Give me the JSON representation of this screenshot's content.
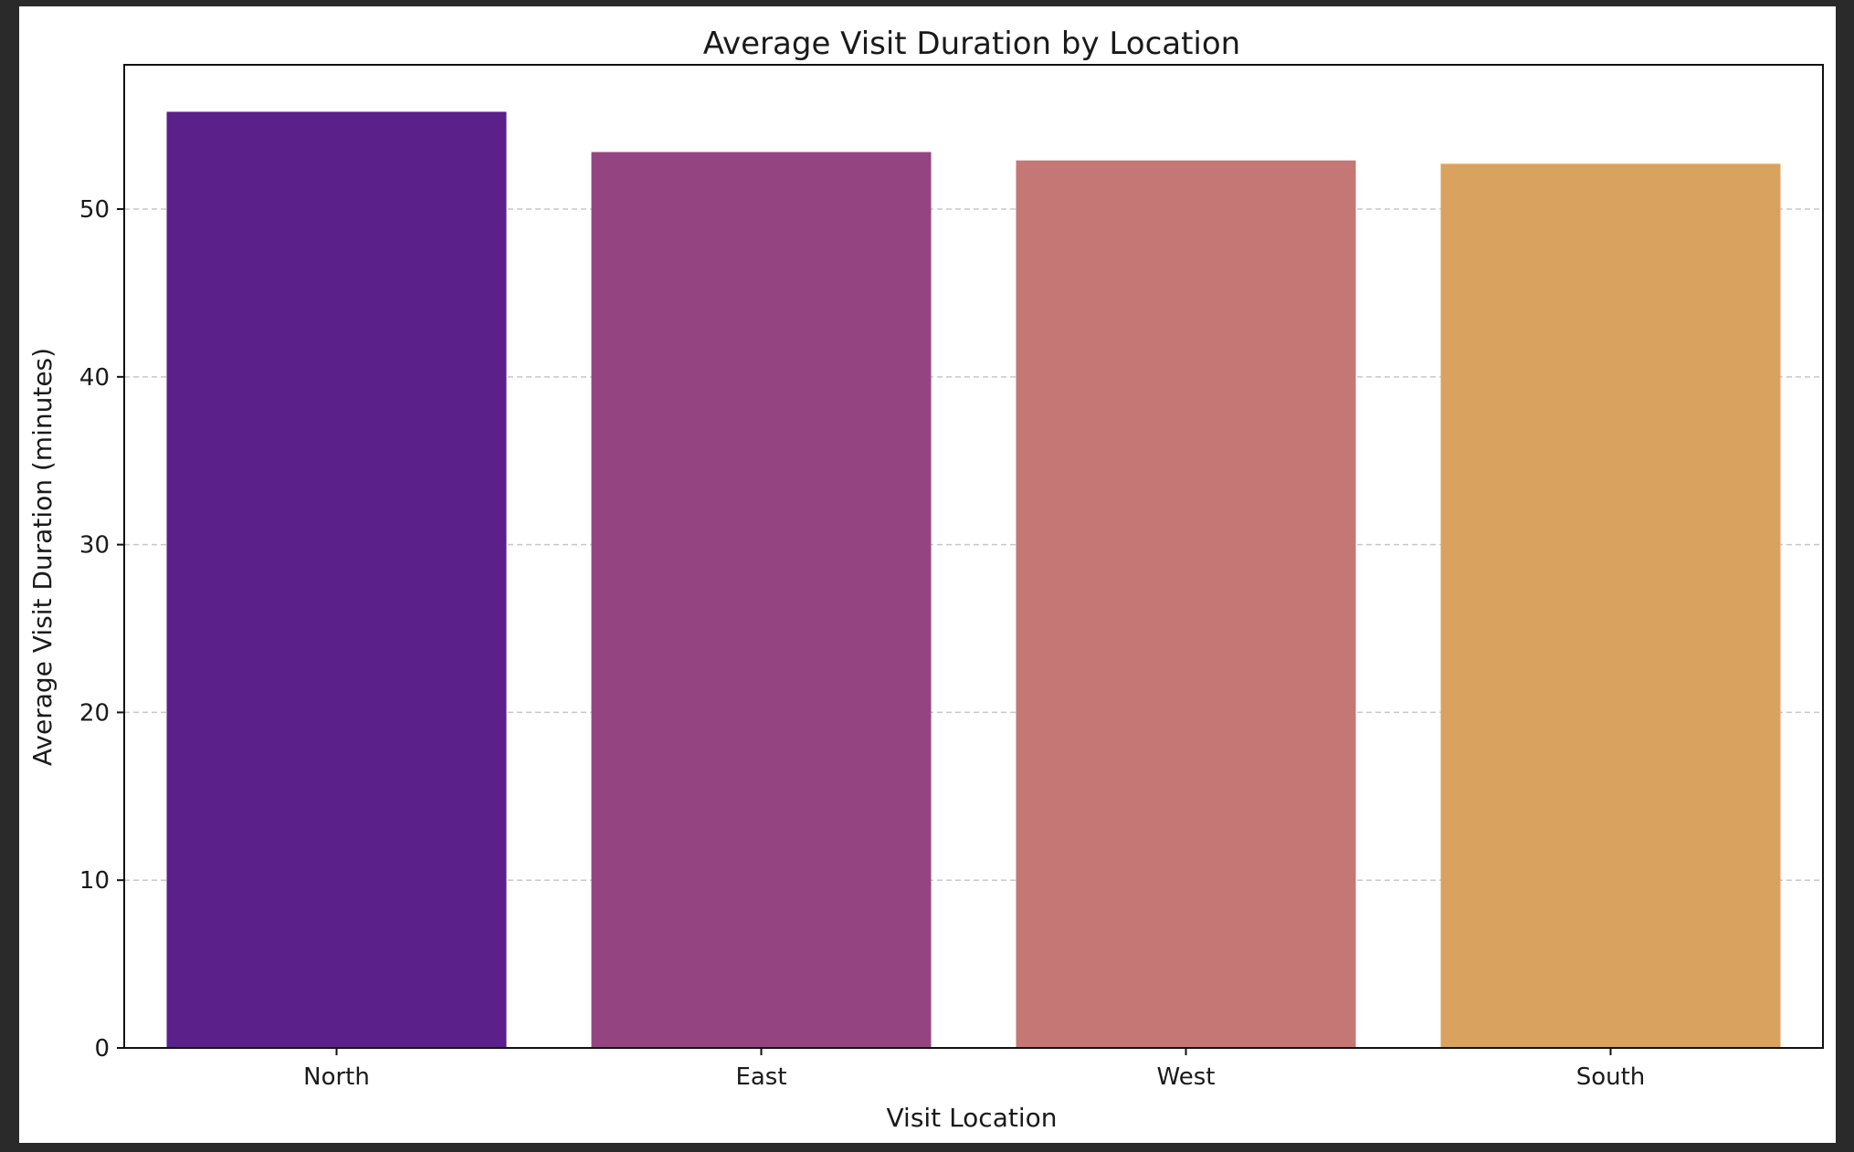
{
  "chart_data": {
    "type": "bar",
    "title": "Average Visit Duration by Location",
    "xlabel": "Visit Location",
    "ylabel": "Average Visit Duration (minutes)",
    "categories": [
      "North",
      "East",
      "West",
      "South"
    ],
    "values": [
      55.8,
      53.4,
      52.9,
      52.7
    ],
    "colors": [
      "#5c208a",
      "#944581",
      "#c47774",
      "#d9a25e"
    ],
    "ylim": [
      0,
      58.6
    ],
    "yticks": [
      0,
      10,
      20,
      30,
      40,
      50
    ],
    "ytick_labels": [
      "0",
      "10",
      "20",
      "30",
      "40",
      "50"
    ],
    "grid": "y-dashed",
    "legend": "none"
  }
}
